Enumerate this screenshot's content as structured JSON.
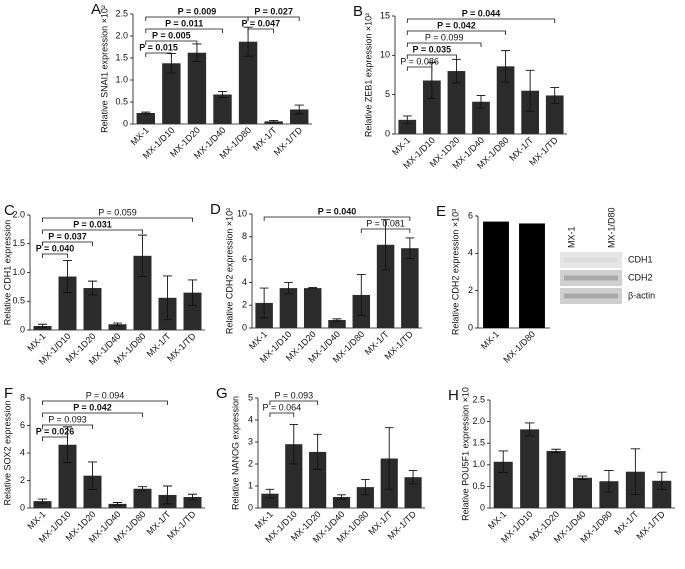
{
  "chart_data": [
    {
      "type": "bar",
      "label": "A",
      "ylabel": "Relative SNAI1 expression ×10²",
      "color": "#2b2b2b",
      "categories": [
        "MX-1",
        "MX-1/D10",
        "MX-1D20",
        "MX-1/D40",
        "MX-1/D80",
        "MX-1/T",
        "MX-1/TD"
      ],
      "values": [
        0.25,
        1.38,
        1.62,
        0.67,
        1.87,
        0.06,
        0.33
      ],
      "errors": [
        0.02,
        0.22,
        0.2,
        0.07,
        0.33,
        0.02,
        0.1
      ],
      "ylim": [
        0,
        2.5
      ],
      "yticks": [
        0,
        0.5,
        {
          "value": 1,
          "label": "1.0"
        },
        1.5,
        {
          "value": 2,
          "label": "2.0"
        },
        2.5
      ],
      "annotations": [
        {
          "text": "P = 0.009",
          "between": [
            0,
            4
          ],
          "bold": true
        },
        {
          "text": "P = 0.011",
          "between": [
            0,
            3
          ],
          "bold": true
        },
        {
          "text": "P = 0.005",
          "between": [
            0,
            2
          ],
          "bold": true
        },
        {
          "text": "P = 0.015",
          "between": [
            0,
            1
          ],
          "bold": true
        },
        {
          "text": "P = 0.027",
          "between": [
            4,
            6
          ],
          "bold": true
        },
        {
          "text": "P = 0.047",
          "between": [
            4,
            5
          ],
          "bold": true
        }
      ]
    },
    {
      "type": "bar",
      "label": "B",
      "ylabel": "Relative ZEB1 expression ×10²",
      "color": "#2b2b2b",
      "categories": [
        "MX-1",
        "MX-1/D10",
        "MX-1D20",
        "MX-1/D40",
        "MX-1/D80",
        "MX-1/T",
        "MX-1/TD"
      ],
      "values": [
        1.8,
        6.8,
        8.0,
        4.1,
        8.6,
        5.5,
        4.9
      ],
      "errors": [
        0.5,
        2.3,
        1.5,
        0.8,
        2.0,
        2.6,
        1.0
      ],
      "ylim": [
        0,
        15
      ],
      "yticks": [
        0,
        5,
        10,
        15
      ],
      "annotations": [
        {
          "text": "P = 0.044",
          "between": [
            0,
            6
          ],
          "bold": true
        },
        {
          "text": "P = 0.042",
          "between": [
            0,
            4
          ],
          "bold": true
        },
        {
          "text": "P = 0.099",
          "between": [
            0,
            3
          ],
          "bold": false
        },
        {
          "text": "P = 0.035",
          "between": [
            0,
            2
          ],
          "bold": true
        },
        {
          "text": "P = 0.086",
          "between": [
            0,
            1
          ],
          "bold": false
        }
      ]
    },
    {
      "type": "bar",
      "label": "C",
      "ylabel": "Relative CDH1 expression",
      "color": "#2b2b2b",
      "categories": [
        "MX-1",
        "MX-1/D10",
        "MX-1D20",
        "MX-1/D40",
        "MX-1/D80",
        "MX-1/T",
        "MX-1/TD"
      ],
      "values": [
        0.07,
        0.93,
        0.73,
        0.1,
        1.29,
        0.56,
        0.65
      ],
      "errors": [
        0.03,
        0.28,
        0.12,
        0.02,
        0.36,
        0.38,
        0.22
      ],
      "ylim": [
        0,
        2
      ],
      "yticks": [
        0,
        0.5,
        {
          "value": 1,
          "label": "1.0"
        },
        1.5,
        {
          "value": 2,
          "label": "2.0"
        }
      ],
      "annotations": [
        {
          "text": "P = 0.059",
          "between": [
            0,
            6
          ],
          "bold": false
        },
        {
          "text": "P = 0.031",
          "between": [
            0,
            4
          ],
          "bold": true
        },
        {
          "text": "P = 0.037",
          "between": [
            0,
            2
          ],
          "bold": true
        },
        {
          "text": "P = 0.040",
          "between": [
            0,
            1
          ],
          "bold": true
        }
      ]
    },
    {
      "type": "bar",
      "label": "D",
      "ylabel": "Relative CDH2 expression ×10²",
      "color": "#2b2b2b",
      "categories": [
        "MX-1",
        "MX-1/D10",
        "MX-1D20",
        "MX-1/D40",
        "MX-1/D80",
        "MX-1/T",
        "MX-1/TD"
      ],
      "values": [
        2.2,
        3.5,
        3.5,
        0.7,
        2.9,
        7.3,
        7.0
      ],
      "errors": [
        1.3,
        0.5,
        0.05,
        0.1,
        1.8,
        2.2,
        0.9
      ],
      "ylim": [
        0,
        10
      ],
      "yticks": [
        0,
        2,
        4,
        6,
        8,
        10
      ],
      "annotations": [
        {
          "text": "P = 0.040",
          "between": [
            0,
            6
          ],
          "bold": true
        },
        {
          "text": "P = 0.081",
          "between": [
            4,
            6
          ],
          "bold": false
        }
      ]
    },
    {
      "type": "bar",
      "label": "E",
      "ylabel": "Relative CDH2 expression ×10³",
      "color": "#000000",
      "categories": [
        "MX-1",
        "MX-1/D80"
      ],
      "values": [
        5.7,
        5.6
      ],
      "ylim": [
        0,
        6
      ],
      "yticks": [
        0,
        2,
        4,
        6
      ],
      "blot": {
        "columns": [
          "MX-1",
          "MX-1/D80"
        ],
        "rows": [
          "CDH1",
          "CDH2",
          "β-actin"
        ]
      }
    },
    {
      "type": "bar",
      "label": "F",
      "ylabel": "Relative SOX2 expression",
      "color": "#2b2b2b",
      "categories": [
        "MX-1",
        "MX-1/D10",
        "MX-1D20",
        "MX-1/D40",
        "MX-1/D80",
        "MX-1/T",
        "MX-1/TD"
      ],
      "values": [
        0.5,
        4.6,
        2.35,
        0.3,
        1.4,
        0.95,
        0.8
      ],
      "errors": [
        0.15,
        1.3,
        1.0,
        0.1,
        0.15,
        0.65,
        0.2
      ],
      "ylim": [
        0,
        8
      ],
      "yticks": [
        0,
        2,
        4,
        6,
        8
      ],
      "annotations": [
        {
          "text": "P = 0.094",
          "between": [
            0,
            5
          ],
          "bold": false
        },
        {
          "text": "P = 0.042",
          "between": [
            0,
            4
          ],
          "bold": true
        },
        {
          "text": "P = 0.093",
          "between": [
            0,
            2
          ],
          "bold": false
        },
        {
          "text": "P = 0.026",
          "between": [
            0,
            1
          ],
          "bold": true
        }
      ]
    },
    {
      "type": "bar",
      "label": "G",
      "ylabel": "Relative NANOG expression",
      "color": "#2b2b2b",
      "categories": [
        "MX-1",
        "MX-1/D10",
        "MX-1D20",
        "MX-1/D40",
        "MX-1/D80",
        "MX-1/T",
        "MX-1/TD"
      ],
      "values": [
        0.65,
        2.9,
        2.55,
        0.5,
        0.95,
        2.25,
        1.4
      ],
      "errors": [
        0.2,
        0.9,
        0.8,
        0.1,
        0.35,
        1.4,
        0.3
      ],
      "ylim": [
        0,
        5
      ],
      "yticks": [
        0,
        1,
        2,
        3,
        4,
        5
      ],
      "annotations": [
        {
          "text": "P = 0.093",
          "between": [
            0,
            2
          ],
          "bold": false
        },
        {
          "text": "P = 0.064",
          "between": [
            0,
            1
          ],
          "bold": false
        }
      ]
    },
    {
      "type": "bar",
      "label": "H",
      "ylabel": "Relative POU5F1 expression ×10",
      "color": "#2b2b2b",
      "categories": [
        "MX-1",
        "MX-1/D10",
        "MX-1D20",
        "MX-1/D40",
        "MX-1/D80",
        "MX-1/T",
        "MX-1/TD"
      ],
      "values": [
        1.07,
        1.82,
        1.32,
        0.7,
        0.62,
        0.84,
        0.63
      ],
      "errors": [
        0.25,
        0.15,
        0.04,
        0.04,
        0.25,
        0.53,
        0.2
      ],
      "ylim": [
        0,
        2.5
      ],
      "yticks": [
        0,
        0.5,
        {
          "value": 1,
          "label": "1.0"
        },
        1.5,
        {
          "value": 2,
          "label": "2.0"
        },
        2.5
      ]
    }
  ]
}
